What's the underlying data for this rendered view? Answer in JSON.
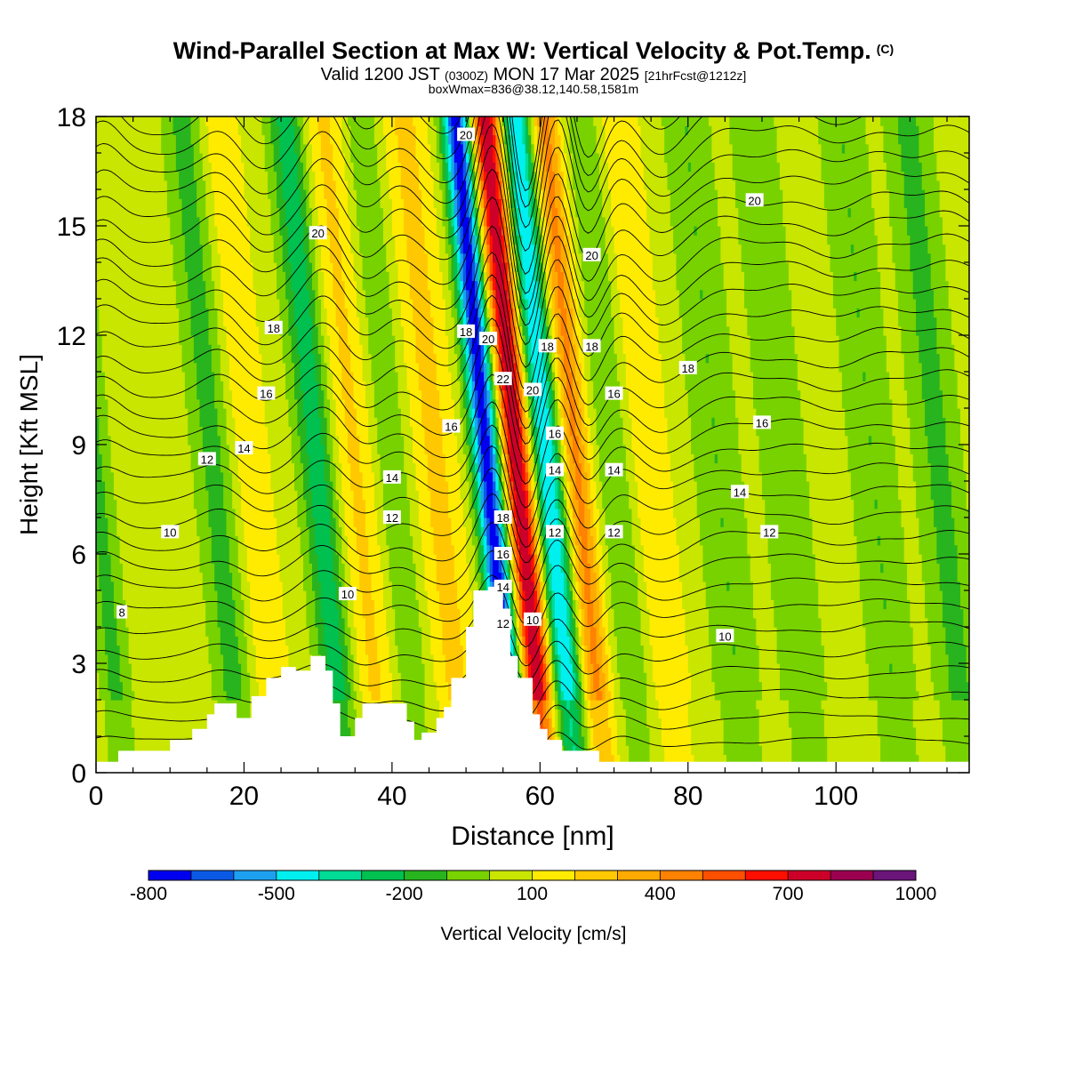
{
  "header": {
    "title": "Wind-Parallel Section at Max W: Vertical Velocity & Pot.Temp.",
    "copyright": "(C)",
    "valid_prefix": "Valid 1200 JST",
    "valid_z": "(0300Z)",
    "valid_date": "MON 17 Mar 2025",
    "forecast": "[21hrFcst@1212z]",
    "box_info": "boxWmax=836@38.12,140.58,1581m"
  },
  "chart_data": {
    "type": "heatmap",
    "xlabel": "Distance [nm]",
    "ylabel": "Height [Kft MSL]",
    "xlim": [
      0,
      118
    ],
    "ylim": [
      0,
      18
    ],
    "x_ticks": [
      0,
      20,
      40,
      60,
      80,
      100
    ],
    "y_ticks": [
      0,
      3,
      6,
      9,
      12,
      15,
      18
    ],
    "colorbar": {
      "label": "Vertical Velocity [cm/s]",
      "tick_labels": [
        "-800",
        "-500",
        "-200",
        "100",
        "400",
        "700",
        "1000"
      ],
      "levels": [
        -800,
        -700,
        -600,
        -500,
        -400,
        -300,
        -200,
        -100,
        0,
        100,
        200,
        300,
        400,
        500,
        600,
        700,
        800,
        900,
        1000
      ],
      "colors": [
        "#0000f0",
        "#0a5ae6",
        "#1ea0f0",
        "#00f0f0",
        "#00dc96",
        "#00c050",
        "#28b41e",
        "#78d200",
        "#c8e600",
        "#ffeb00",
        "#ffc800",
        "#ffaa00",
        "#ff8200",
        "#ff5000",
        "#ff0f00",
        "#cc0028",
        "#9b0050",
        "#6b147a"
      ]
    },
    "vertical_velocity": {
      "description": "band centers at x (nm) with peak w (cm/s) and width (nm)",
      "background": 50,
      "bands": [
        {
          "x": 1,
          "w": -180,
          "width": 2
        },
        {
          "x": 17,
          "w": -190,
          "width": 2.6
        },
        {
          "x": 22,
          "w": 140,
          "width": 2.6
        },
        {
          "x": 31,
          "w": -320,
          "width": 2.4
        },
        {
          "x": 36,
          "w": 170,
          "width": 3.0
        },
        {
          "x": 41,
          "w": -140,
          "width": 2.4
        },
        {
          "x": 47,
          "w": 180,
          "width": 3.0
        },
        {
          "x": 54,
          "w": -820,
          "width": 1.9
        },
        {
          "x": 58,
          "w": 760,
          "width": 2.0
        },
        {
          "x": 62,
          "w": -560,
          "width": 2.0
        },
        {
          "x": 66,
          "w": 380,
          "width": 1.9
        },
        {
          "x": 71,
          "w": -150,
          "width": 2.2
        },
        {
          "x": 76,
          "w": 150,
          "width": 2.6
        },
        {
          "x": 85,
          "w": -150,
          "width": 3.0
        },
        {
          "x": 94,
          "w": -140,
          "width": 3.0
        },
        {
          "x": 106,
          "w": -150,
          "width": 3.0
        },
        {
          "x": 115,
          "w": -180,
          "width": 3.0
        }
      ]
    },
    "terrain": {
      "x": [
        0,
        3,
        10,
        13,
        15,
        16,
        19,
        21,
        23,
        25,
        27,
        29,
        31,
        32,
        33,
        35,
        36,
        40,
        42,
        43,
        44,
        46,
        47,
        48,
        50,
        51,
        53,
        55,
        56,
        57,
        59,
        60,
        61,
        63,
        65,
        68,
        118
      ],
      "height": [
        0.3,
        0.6,
        0.9,
        1.2,
        1.6,
        1.9,
        1.5,
        2.1,
        2.6,
        2.9,
        2.8,
        3.2,
        2.8,
        1.9,
        1.0,
        1.5,
        1.9,
        1.9,
        1.4,
        0.9,
        1.1,
        1.5,
        1.8,
        2.6,
        4.0,
        5.0,
        5.1,
        4.5,
        3.2,
        2.6,
        1.6,
        1.2,
        0.9,
        0.6,
        0.6,
        0.3,
        0.3
      ]
    },
    "potential_temperature": {
      "contour_labels": [
        {
          "x": 3.5,
          "y": 4.4,
          "text": "8"
        },
        {
          "x": 10,
          "y": 6.6,
          "text": "10"
        },
        {
          "x": 34,
          "y": 4.9,
          "text": "10"
        },
        {
          "x": 85,
          "y": 3.75,
          "text": "10"
        },
        {
          "x": 59,
          "y": 4.2,
          "text": "10"
        },
        {
          "x": 15,
          "y": 8.6,
          "text": "12"
        },
        {
          "x": 40,
          "y": 7.0,
          "text": "12"
        },
        {
          "x": 55,
          "y": 4.1,
          "text": "12"
        },
        {
          "x": 62,
          "y": 6.6,
          "text": "12"
        },
        {
          "x": 70,
          "y": 6.6,
          "text": "12"
        },
        {
          "x": 91,
          "y": 6.6,
          "text": "12"
        },
        {
          "x": 20,
          "y": 8.9,
          "text": "14"
        },
        {
          "x": 40,
          "y": 8.1,
          "text": "14"
        },
        {
          "x": 55,
          "y": 5.1,
          "text": "14"
        },
        {
          "x": 62,
          "y": 8.3,
          "text": "14"
        },
        {
          "x": 70,
          "y": 8.3,
          "text": "14"
        },
        {
          "x": 87,
          "y": 7.7,
          "text": "14"
        },
        {
          "x": 23,
          "y": 10.4,
          "text": "16"
        },
        {
          "x": 48,
          "y": 9.5,
          "text": "16"
        },
        {
          "x": 55,
          "y": 6.0,
          "text": "16"
        },
        {
          "x": 62,
          "y": 9.3,
          "text": "16"
        },
        {
          "x": 70,
          "y": 10.4,
          "text": "16"
        },
        {
          "x": 90,
          "y": 9.6,
          "text": "16"
        },
        {
          "x": 24,
          "y": 12.2,
          "text": "18"
        },
        {
          "x": 50,
          "y": 12.1,
          "text": "18"
        },
        {
          "x": 55,
          "y": 7.0,
          "text": "18"
        },
        {
          "x": 61,
          "y": 11.7,
          "text": "18"
        },
        {
          "x": 67,
          "y": 11.7,
          "text": "18"
        },
        {
          "x": 80,
          "y": 11.1,
          "text": "18"
        },
        {
          "x": 30,
          "y": 14.8,
          "text": "20"
        },
        {
          "x": 53,
          "y": 11.9,
          "text": "20"
        },
        {
          "x": 59,
          "y": 10.5,
          "text": "20"
        },
        {
          "x": 50,
          "y": 17.5,
          "text": "20"
        },
        {
          "x": 67,
          "y": 14.2,
          "text": "20"
        },
        {
          "x": 89,
          "y": 15.7,
          "text": "20"
        },
        {
          "x": 55,
          "y": 10.8,
          "text": "22"
        }
      ]
    },
    "grid": false
  }
}
